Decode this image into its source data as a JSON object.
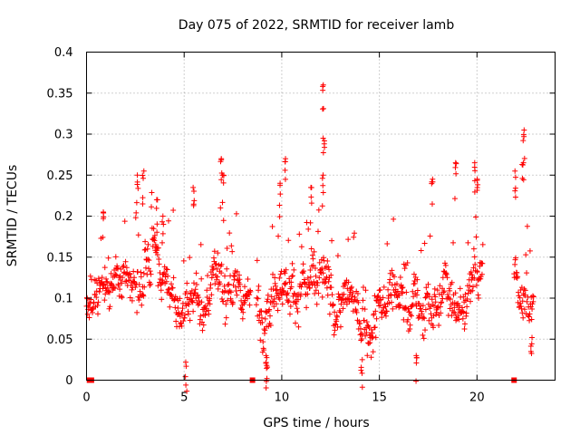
{
  "chart_data": {
    "type": "scatter",
    "title": "Day 075 of 2022, SRMTID for receiver lamb",
    "xlabel": "GPS time / hours",
    "ylabel": "SRMTID / TECUs",
    "xlim": [
      0,
      24
    ],
    "ylim": [
      0,
      0.4
    ],
    "grid": true,
    "xticks": [
      0,
      5,
      10,
      15,
      20
    ],
    "xtick_labels": [
      "0",
      "5",
      "10",
      "15",
      "20"
    ],
    "yticks": [
      0,
      0.05,
      0.1,
      0.15,
      0.2,
      0.25,
      0.3,
      0.35,
      0.4
    ],
    "ytick_labels": [
      "0",
      "0.05",
      "0.1",
      "0.15",
      "0.2",
      "0.25",
      "0.3",
      "0.35",
      "0.4"
    ],
    "marker": "plus",
    "color": "#ff0000",
    "generator": {
      "description": "Dense SRMTID samples approximated as hourly baseline levels with spread and peak excursions",
      "step_hours": 0.02,
      "data_ranges": [
        [
          0,
          8.4
        ],
        [
          8.7,
          20.3
        ],
        [
          21.9,
          22.9
        ]
      ],
      "baseline_x": [
        0,
        0.5,
        1,
        1.5,
        2,
        2.5,
        3,
        3.5,
        4,
        4.5,
        5,
        5.5,
        6,
        6.5,
        7,
        7.5,
        8,
        8.5,
        9,
        9.5,
        10,
        10.5,
        11,
        11.5,
        12,
        12.5,
        13,
        13.5,
        14,
        14.5,
        15,
        15.5,
        16,
        16.5,
        17,
        17.5,
        18,
        18.5,
        19,
        19.5,
        20,
        22,
        22.5,
        22.9
      ],
      "baseline_y": [
        0.09,
        0.12,
        0.12,
        0.11,
        0.09,
        0.1,
        0.14,
        0.15,
        0.11,
        0.1,
        0.09,
        0.1,
        0.09,
        0.12,
        0.12,
        0.1,
        0.1,
        0.09,
        0.1,
        0.11,
        0.13,
        0.12,
        0.11,
        0.12,
        0.13,
        0.1,
        0.09,
        0.1,
        0.07,
        0.08,
        0.09,
        0.1,
        0.1,
        0.09,
        0.08,
        0.1,
        0.1,
        0.11,
        0.1,
        0.11,
        0.12,
        0.13,
        0.1,
        0.08
      ],
      "spread": 0.035,
      "spikes": [
        {
          "x": 0.85,
          "y": 0.205
        },
        {
          "x": 2.6,
          "y": 0.25
        },
        {
          "x": 2.9,
          "y": 0.255
        },
        {
          "x": 3.6,
          "y": 0.22
        },
        {
          "x": 3.9,
          "y": 0.2
        },
        {
          "x": 5.5,
          "y": 0.235
        },
        {
          "x": 6.9,
          "y": 0.27
        },
        {
          "x": 7.0,
          "y": 0.25
        },
        {
          "x": 9.9,
          "y": 0.24
        },
        {
          "x": 10.2,
          "y": 0.27
        },
        {
          "x": 11.5,
          "y": 0.235
        },
        {
          "x": 12.1,
          "y": 0.36
        },
        {
          "x": 12.15,
          "y": 0.295
        },
        {
          "x": 12.1,
          "y": 0.25
        },
        {
          "x": 17.7,
          "y": 0.245
        },
        {
          "x": 18.9,
          "y": 0.265
        },
        {
          "x": 19.9,
          "y": 0.265
        },
        {
          "x": 20.0,
          "y": 0.245
        },
        {
          "x": 22.4,
          "y": 0.305
        },
        {
          "x": 22.35,
          "y": 0.265
        },
        {
          "x": 21.95,
          "y": 0.255
        },
        {
          "x": 9.2,
          "y": 0.03
        },
        {
          "x": 9.25,
          "y": 0.018
        },
        {
          "x": 5.1,
          "y": 0.022
        },
        {
          "x": 14.1,
          "y": 0.025
        },
        {
          "x": 16.9,
          "y": 0.03
        },
        {
          "x": 22.8,
          "y": 0.052
        }
      ],
      "zero_markers": [
        0.15,
        0.25,
        8.5,
        21.9
      ]
    }
  }
}
